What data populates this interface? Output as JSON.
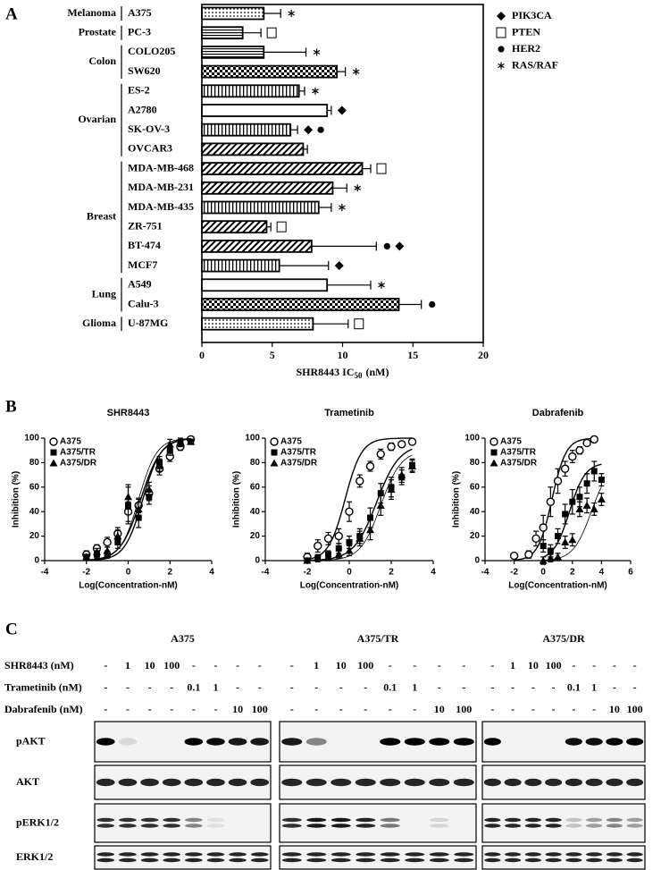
{
  "chart_data": [
    {
      "type": "bar",
      "orientation": "horizontal",
      "panel_label": "A",
      "groups": [
        {
          "name": "Melanoma",
          "size": 1
        },
        {
          "name": "Prostate",
          "size": 1
        },
        {
          "name": "Colon",
          "size": 2
        },
        {
          "name": "Ovarian",
          "size": 4
        },
        {
          "name": "Breast",
          "size": 6
        },
        {
          "name": "Lung",
          "size": 2
        },
        {
          "name": "Glioma",
          "size": 1
        }
      ],
      "categories": [
        "A375",
        "PC-3",
        "COLO205",
        "SW620",
        "ES-2",
        "A2780",
        "SK-OV-3",
        "OVCAR3",
        "MDA-MB-468",
        "MDA-MB-231",
        "MDA-MB-435",
        "ZR-751",
        "BT-474",
        "MCF7",
        "A549",
        "Calu-3",
        "U-87MG"
      ],
      "values": [
        4.4,
        2.9,
        4.4,
        9.6,
        6.9,
        8.9,
        6.3,
        7.2,
        11.4,
        9.3,
        8.3,
        4.6,
        7.8,
        5.5,
        8.9,
        14,
        7.9
      ],
      "errors": [
        1.2,
        1.3,
        3.0,
        0.6,
        0.4,
        0.3,
        0.5,
        0.3,
        0.6,
        1.0,
        0.9,
        0.3,
        4.6,
        3.5,
        3.1,
        1.6,
        2.5
      ],
      "mutations": [
        [
          "RAS/RAF"
        ],
        [
          "PTEN"
        ],
        [
          "RAS/RAF"
        ],
        [
          "RAS/RAF"
        ],
        [
          "RAS/RAF"
        ],
        [
          "PIK3CA"
        ],
        [
          "PIK3CA",
          "HER2"
        ],
        [],
        [
          "PTEN"
        ],
        [
          "RAS/RAF"
        ],
        [
          "RAS/RAF"
        ],
        [
          "PTEN"
        ],
        [
          "HER2",
          "PIK3CA"
        ],
        [
          "PIK3CA"
        ],
        [
          "RAS/RAF"
        ],
        [
          "HER2"
        ],
        [
          "PTEN"
        ]
      ],
      "legend": [
        {
          "name": "PIK3CA",
          "marker": "diamond"
        },
        {
          "name": "PTEN",
          "marker": "square"
        },
        {
          "name": "HER2",
          "marker": "circle"
        },
        {
          "name": "RAS/RAF",
          "marker": "asterisk"
        }
      ],
      "xlabel": [
        "SHR8443 IC",
        "50",
        "(nM)"
      ],
      "xlim": [
        0,
        20
      ],
      "xticks": [
        0,
        5,
        10,
        15,
        20
      ],
      "color": "#000000"
    },
    {
      "type": "scatter",
      "panel_label": "B",
      "title": "SHR8443",
      "xlabel": "Log(Concentration-nM)",
      "ylabel": "Inhibition (%)",
      "xlim": [
        -4,
        4
      ],
      "xticks": [
        -4,
        -2,
        0,
        2,
        4
      ],
      "ylim": [
        0,
        100
      ],
      "yticks": [
        0,
        20,
        40,
        60,
        80,
        100
      ],
      "legend": "upper left",
      "series": [
        {
          "name": "A375",
          "marker": "open-circle",
          "color": "#000000",
          "x": [
            -2,
            -1.5,
            -1,
            -0.5,
            0,
            0.5,
            1,
            1.5,
            2,
            2.5,
            3
          ],
          "values": [
            5,
            10,
            15,
            22,
            40,
            45,
            55,
            75,
            85,
            93,
            99
          ],
          "errors": [
            3,
            3,
            4,
            5,
            8,
            6,
            6,
            5,
            4,
            3,
            2
          ],
          "fit": {
            "bottom": 0,
            "top": 100,
            "log_ec50": 0.6,
            "hill": 0.9
          }
        },
        {
          "name": "A375/TR",
          "marker": "square",
          "color": "#000000",
          "x": [
            -2,
            -1.5,
            -1,
            -0.5,
            0,
            0.5,
            1,
            1.5,
            2,
            2.5,
            3
          ],
          "values": [
            3,
            5,
            5,
            15,
            45,
            35,
            52,
            80,
            90,
            96,
            97
          ],
          "errors": [
            2,
            3,
            3,
            5,
            15,
            8,
            6,
            5,
            4,
            3,
            2
          ],
          "fit": {
            "bottom": 0,
            "top": 100,
            "log_ec50": 0.7,
            "hill": 1.0
          }
        },
        {
          "name": "A375/DR",
          "marker": "triangle",
          "color": "#000000",
          "x": [
            -2,
            -1.5,
            -1,
            -0.5,
            0,
            0.5,
            1,
            1.5,
            2,
            2.5,
            3
          ],
          "values": [
            3,
            7,
            8,
            20,
            52,
            42,
            58,
            78,
            95,
            97,
            97
          ],
          "errors": [
            2,
            3,
            3,
            5,
            10,
            8,
            6,
            5,
            4,
            3,
            2
          ],
          "fit": {
            "bottom": 0,
            "top": 100,
            "log_ec50": 0.5,
            "hill": 1.0
          }
        }
      ]
    },
    {
      "type": "scatter",
      "title": "Trametinib",
      "xlabel": "Log(Concentration-nM)",
      "ylabel": "Inhibition (%)",
      "xlim": [
        -4,
        4
      ],
      "xticks": [
        -4,
        -2,
        0,
        2,
        4
      ],
      "ylim": [
        0,
        100
      ],
      "yticks": [
        0,
        20,
        40,
        60,
        80,
        100
      ],
      "legend": "upper left",
      "series": [
        {
          "name": "A375",
          "marker": "open-circle",
          "color": "#000000",
          "x": [
            -2,
            -1.5,
            -1,
            -0.5,
            0,
            0.5,
            1,
            1.5,
            2,
            2.5,
            3
          ],
          "values": [
            3,
            12,
            18,
            20,
            40,
            65,
            77,
            87,
            93,
            95,
            97
          ],
          "errors": [
            3,
            5,
            5,
            6,
            8,
            5,
            4,
            4,
            3,
            2,
            2
          ],
          "fit": {
            "bottom": 0,
            "top": 100,
            "log_ec50": -0.2,
            "hill": 1.1
          }
        },
        {
          "name": "A375/TR",
          "marker": "square",
          "color": "#000000",
          "x": [
            -2,
            -1.5,
            -1,
            -0.5,
            0,
            0.5,
            1,
            1.5,
            2,
            2.5,
            3
          ],
          "values": [
            0,
            2,
            5,
            10,
            15,
            20,
            35,
            55,
            60,
            68,
            78
          ],
          "errors": [
            2,
            3,
            3,
            4,
            5,
            6,
            8,
            8,
            8,
            6,
            5
          ],
          "fit": {
            "bottom": 0,
            "top": 95,
            "log_ec50": 1.3,
            "hill": 0.8
          }
        },
        {
          "name": "A375/DR",
          "marker": "triangle",
          "color": "#000000",
          "x": [
            -2,
            -1.5,
            -1,
            -0.5,
            0,
            0.5,
            1,
            1.5,
            2,
            2.5,
            3
          ],
          "values": [
            0,
            2,
            3,
            5,
            8,
            18,
            25,
            45,
            58,
            70,
            77
          ],
          "errors": [
            2,
            2,
            3,
            3,
            4,
            6,
            8,
            8,
            8,
            6,
            5
          ],
          "fit": {
            "bottom": 0,
            "top": 90,
            "log_ec50": 1.5,
            "hill": 0.9
          }
        }
      ]
    },
    {
      "type": "scatter",
      "title": "Dabrafenib",
      "xlabel": "Log(Concentration-nM)",
      "ylabel": "Inhibition (%)",
      "xlim": [
        -4,
        6
      ],
      "xticks": [
        -4,
        -2,
        0,
        2,
        4,
        6
      ],
      "ylim": [
        0,
        100
      ],
      "yticks": [
        0,
        20,
        40,
        60,
        80,
        100
      ],
      "legend": "upper left",
      "series": [
        {
          "name": "A375",
          "marker": "open-circle",
          "color": "#000000",
          "x": [
            -2,
            -1,
            -0.5,
            0,
            0.5,
            1,
            1.5,
            2,
            2.5,
            3,
            3.5
          ],
          "values": [
            4,
            5,
            18,
            27,
            48,
            65,
            75,
            85,
            90,
            96,
            99
          ],
          "errors": [
            2,
            3,
            6,
            10,
            12,
            10,
            6,
            5,
            3,
            2,
            1
          ],
          "fit": {
            "bottom": 0,
            "top": 100,
            "log_ec50": 0.6,
            "hill": 0.9
          }
        },
        {
          "name": "A375/TR",
          "marker": "square",
          "color": "#000000",
          "x": [
            0,
            0.5,
            1,
            1.5,
            2,
            2.5,
            3,
            3.5,
            4
          ],
          "values": [
            12,
            8,
            20,
            38,
            48,
            52,
            63,
            73,
            66
          ],
          "errors": [
            5,
            5,
            6,
            8,
            10,
            8,
            8,
            8,
            5
          ],
          "fit": {
            "bottom": 0,
            "top": 80,
            "log_ec50": 1.8,
            "hill": 0.8
          }
        },
        {
          "name": "A375/DR",
          "marker": "triangle",
          "color": "#000000",
          "x": [
            0,
            0.5,
            1,
            1.5,
            2,
            2.5,
            3,
            3.5,
            4
          ],
          "values": [
            0,
            2,
            3,
            15,
            17,
            42,
            45,
            42,
            50
          ],
          "errors": [
            3,
            3,
            3,
            5,
            5,
            6,
            6,
            5,
            5
          ],
          "fit": {
            "bottom": 0,
            "top": 80,
            "log_ec50": 3.3,
            "hill": 0.7
          }
        }
      ]
    }
  ],
  "blot": {
    "label": "C",
    "cell_lines": [
      "A375",
      "A375/TR",
      "A375/DR"
    ],
    "treatments": [
      {
        "name": "SHR8443 (nM)",
        "doses": [
          "-",
          "1",
          "10",
          "100",
          "-",
          "-",
          "-",
          "-"
        ]
      },
      {
        "name": "Trametinib (nM)",
        "doses": [
          "-",
          "-",
          "-",
          "-",
          "0.1",
          "1",
          "-",
          "-"
        ]
      },
      {
        "name": "Dabrafenib (nM)",
        "doses": [
          "-",
          "-",
          "-",
          "-",
          "-",
          "-",
          "10",
          "100"
        ]
      }
    ],
    "proteins": [
      "pAKT",
      "AKT",
      "pERK1/2",
      "ERK1/2"
    ],
    "bands": [
      [
        [
          1,
          0.1,
          0,
          0,
          1,
          0.95,
          0.9,
          0.9
        ],
        [
          0.85,
          0.85,
          0.85,
          0.85,
          0.85,
          0.85,
          0.85,
          0.85
        ],
        [
          0.8,
          0.8,
          0.8,
          0.8,
          0.45,
          0.08,
          0,
          0
        ],
        [
          0.85,
          0.85,
          0.85,
          0.85,
          0.85,
          0.85,
          0.85,
          0.85
        ]
      ],
      [
        [
          0.9,
          0.45,
          0,
          0,
          1,
          1,
          1,
          1
        ],
        [
          0.85,
          0.85,
          0.85,
          0.85,
          0.85,
          0.85,
          0.85,
          0.85
        ],
        [
          0.8,
          0.9,
          0.9,
          0.85,
          0.5,
          0,
          0.12,
          0
        ],
        [
          0.85,
          0.85,
          0.85,
          0.85,
          0.85,
          0.85,
          0.85,
          0.85
        ]
      ],
      [
        [
          1,
          0,
          0,
          0,
          0.95,
          0.95,
          1,
          1
        ],
        [
          0.85,
          0.85,
          0.85,
          0.85,
          0.85,
          0.85,
          0.85,
          0.85
        ],
        [
          0.85,
          0.85,
          0.85,
          0.85,
          0.2,
          0.35,
          0.45,
          0.35
        ],
        [
          0.85,
          0.85,
          0.85,
          0.85,
          0.85,
          0.85,
          0.85,
          0.85
        ]
      ]
    ]
  }
}
